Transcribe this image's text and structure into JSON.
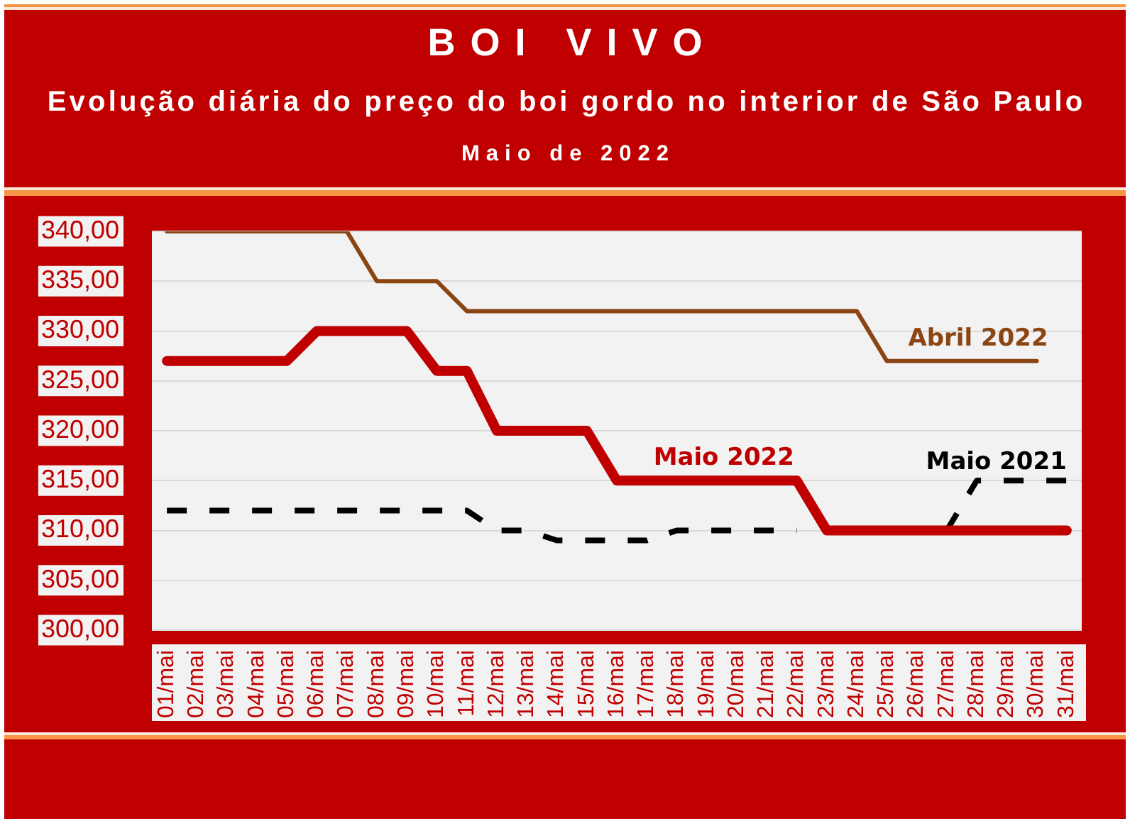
{
  "chart_data": {
    "type": "line",
    "title": "BOI VIVO",
    "subtitle": "Evolução diária do preço do boi gordo no interior de São Paulo",
    "annotations": [
      "Maio de 2022"
    ],
    "categories": [
      "01/mai",
      "02/mai",
      "03/mai",
      "04/mai",
      "05/mai",
      "06/mai",
      "07/mai",
      "08/mai",
      "09/mai",
      "10/mai",
      "11/mai",
      "12/mai",
      "13/mai",
      "14/mai",
      "15/mai",
      "16/mai",
      "17/mai",
      "18/mai",
      "19/mai",
      "20/mai",
      "21/mai",
      "22/mai",
      "23/mai",
      "24/mai",
      "25/mai",
      "26/mai",
      "27/mai",
      "28/mai",
      "29/mai",
      "30/mai",
      "31/mai"
    ],
    "series": [
      {
        "name": "Maio 2022",
        "color": "#c00000",
        "values": [
          327,
          327,
          327,
          327,
          327,
          330,
          330,
          330,
          330,
          326,
          326,
          320,
          320,
          320,
          320,
          315,
          315,
          315,
          315,
          315,
          315,
          315,
          310,
          310,
          310,
          310,
          310,
          310,
          310,
          310,
          310
        ]
      },
      {
        "name": "Abril 2022",
        "color": "#8b4513",
        "values": [
          340,
          340,
          340,
          340,
          340,
          340,
          340,
          335,
          335,
          335,
          332,
          332,
          332,
          332,
          332,
          332,
          332,
          332,
          332,
          332,
          332,
          332,
          332,
          332,
          327,
          327,
          327,
          327,
          327,
          327,
          null
        ]
      },
      {
        "name": "Maio 2021",
        "color": "#000000",
        "line_style": "dashed",
        "values": [
          312,
          312,
          312,
          312,
          312,
          312,
          312,
          312,
          312,
          312,
          312,
          310,
          310,
          309,
          309,
          309,
          309,
          310,
          310,
          310,
          310,
          310,
          null,
          null,
          null,
          null,
          310,
          315,
          315,
          315,
          315
        ]
      }
    ],
    "ylim": [
      300,
      340
    ],
    "yticks": [
      {
        "value": 300,
        "label": "300,00"
      },
      {
        "value": 305,
        "label": "305,00"
      },
      {
        "value": 310,
        "label": "310,00"
      },
      {
        "value": 315,
        "label": "315,00"
      },
      {
        "value": 320,
        "label": "320,00"
      },
      {
        "value": 325,
        "label": "325,00"
      },
      {
        "value": 330,
        "label": "330,00"
      },
      {
        "value": 335,
        "label": "335,00"
      },
      {
        "value": 340,
        "label": "340,00"
      }
    ],
    "grid": "y",
    "legend": false,
    "marker": "none",
    "line_style": "solid"
  }
}
